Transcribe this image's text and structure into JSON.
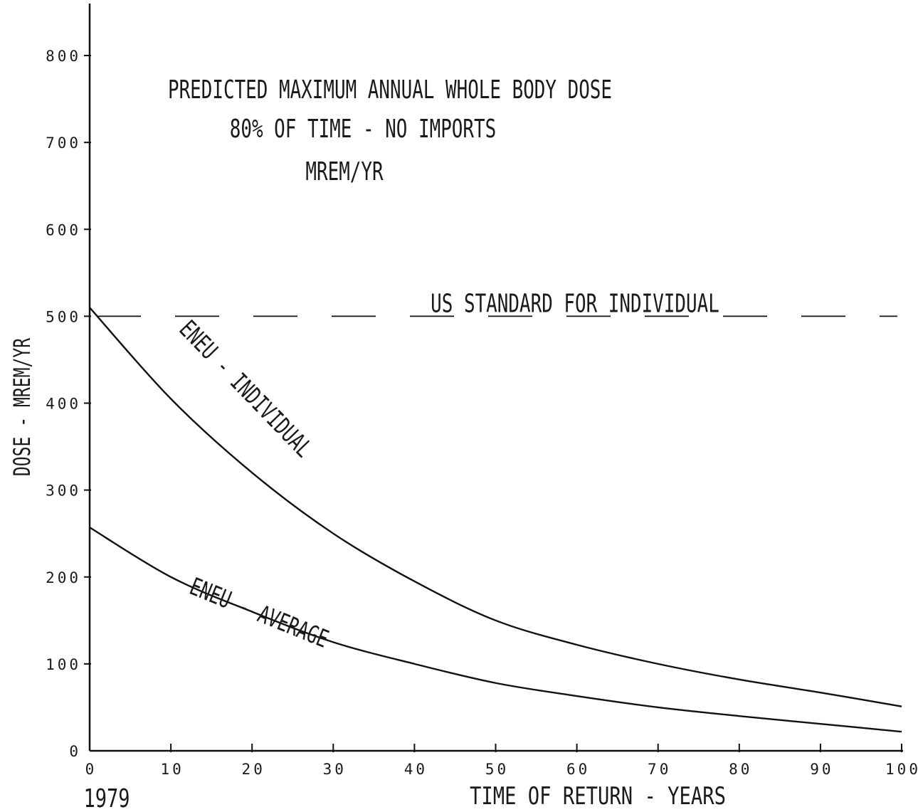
{
  "chart_data": {
    "type": "line",
    "title_lines": [
      "PREDICTED MAXIMUM ANNUAL WHOLE BODY DOSE",
      "80% OF TIME - NO IMPORTS",
      "MREM/YR"
    ],
    "xlabel": "TIME OF RETURN - YEARS",
    "ylabel": "DOSE - MREM/YR",
    "x_origin_label": "1979",
    "xlim": [
      0,
      100
    ],
    "ylim": [
      0,
      800
    ],
    "x_ticks": [
      0,
      10,
      20,
      30,
      40,
      50,
      60,
      70,
      80,
      90,
      100
    ],
    "y_ticks": [
      0,
      100,
      200,
      300,
      400,
      500,
      600,
      700,
      800
    ],
    "grid": false,
    "reference_line": {
      "y": 500,
      "label": "US STANDARD FOR INDIVIDUAL"
    },
    "series": [
      {
        "name": "ENEU - INDIVIDUAL",
        "x": [
          0,
          10,
          20,
          30,
          40,
          50,
          60,
          70,
          80,
          90,
          100
        ],
        "values": [
          510,
          405,
          320,
          250,
          195,
          150,
          122,
          100,
          82,
          67,
          51
        ]
      },
      {
        "name": "ENEU - AVERAGE",
        "x": [
          0,
          10,
          20,
          30,
          40,
          50,
          60,
          70,
          80,
          90,
          100
        ],
        "values": [
          257,
          200,
          160,
          125,
          100,
          78,
          63,
          50,
          40,
          31,
          22
        ]
      }
    ]
  },
  "colors": {
    "ink": "#111111",
    "paper": "#ffffff"
  }
}
